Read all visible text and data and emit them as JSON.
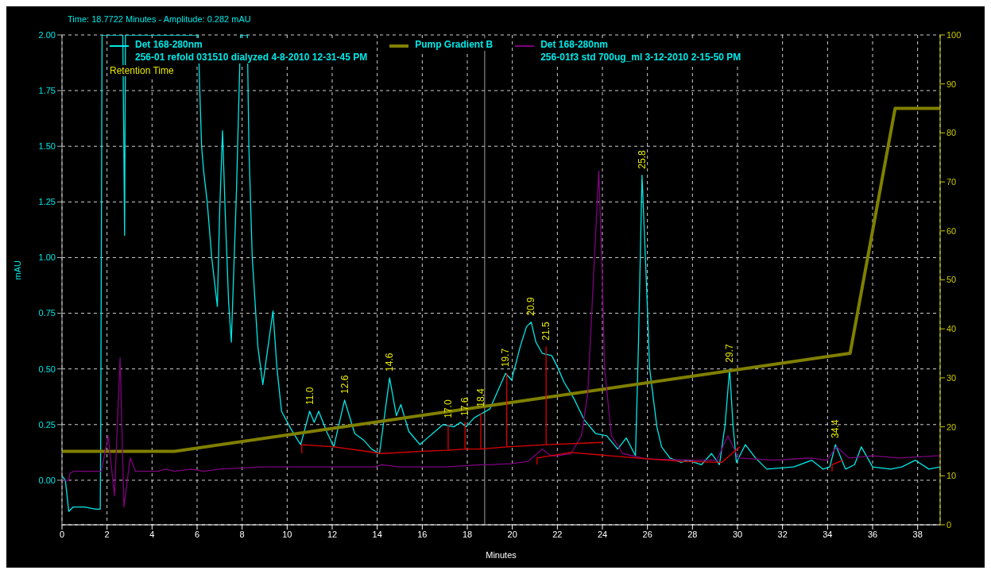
{
  "chart_data": {
    "type": "line",
    "xlabel": "Minutes",
    "ylabel": "mAU",
    "xlim": [
      0,
      39
    ],
    "xticks": [
      0,
      2,
      4,
      6,
      8,
      10,
      12,
      14,
      16,
      18,
      20,
      22,
      24,
      26,
      28,
      30,
      32,
      34,
      36,
      38
    ],
    "ylim": [
      -0.2,
      2.0
    ],
    "yticks": [
      {
        "value": 0,
        "label": "0.00"
      },
      {
        "value": 0.25,
        "label": "0.25"
      },
      {
        "value": 0.5,
        "label": "0.50"
      },
      {
        "value": 0.75,
        "label": "0.75"
      },
      {
        "value": 1,
        "label": "1.00"
      },
      {
        "value": 1.25,
        "label": "1.25"
      },
      {
        "value": 1.5,
        "label": "1.50"
      },
      {
        "value": 1.75,
        "label": "1.75"
      },
      {
        "value": 2,
        "label": "2.00"
      }
    ],
    "y2lim": [
      0,
      100
    ],
    "y2ticks": [
      0,
      10,
      20,
      30,
      40,
      50,
      60,
      70,
      80,
      90,
      100
    ],
    "grid": true,
    "legend": "top",
    "marker": "none",
    "series": [
      {
        "name": "Det 168-280nm\n256-01 refold 031510 dialyzed 4-8-2010 12-31-45 PM",
        "color": "#00e8e8",
        "x": [
          0,
          0.15,
          0.3,
          0.5,
          1.0,
          1.5,
          1.7,
          1.72,
          1.78,
          2.7,
          2.74,
          2.78,
          2.82,
          6.05,
          6.12,
          6.2,
          6.3,
          6.45,
          6.65,
          6.9,
          7.0,
          7.13,
          7.25,
          7.4,
          7.52,
          7.75,
          7.93,
          8.23,
          8.3,
          8.45,
          8.7,
          8.92,
          9.15,
          9.37,
          9.55,
          9.75,
          10.17,
          10.6,
          11.0,
          11.2,
          11.4,
          11.75,
          12.07,
          12.55,
          13.0,
          13.4,
          13.75,
          14.1,
          14.55,
          14.85,
          15.05,
          15.4,
          15.9,
          16.23,
          16.58,
          16.92,
          17.4,
          17.7,
          17.95,
          18.3,
          18.65,
          19.0,
          19.7,
          19.97,
          20.35,
          20.63,
          20.84,
          21.05,
          21.33,
          21.75,
          22.0,
          22.3,
          22.72,
          23.2,
          23.7,
          24.19,
          24.68,
          25.06,
          25.47,
          25.6,
          25.76,
          25.95,
          26.1,
          26.42,
          26.63,
          27.0,
          27.5,
          27.8,
          28.4,
          28.85,
          29.2,
          29.45,
          29.65,
          29.8,
          29.95,
          30.35,
          30.8,
          31.3,
          32.5,
          33.3,
          33.8,
          34.1,
          34.35,
          34.8,
          35.2,
          35.5,
          36.0,
          36.8,
          37.3,
          37.9,
          38.5,
          39
        ],
        "values": [
          0.02,
          0,
          -0.14,
          -0.12,
          -0.12,
          -0.13,
          -0.13,
          0.2,
          2.0,
          2.0,
          1.58,
          1.1,
          2.0,
          2.0,
          1.75,
          1.5,
          1.38,
          1.25,
          1.0,
          0.78,
          1.2,
          1.57,
          1.2,
          0.8,
          0.62,
          1.3,
          2.0,
          2.0,
          1.5,
          1.0,
          0.6,
          0.43,
          0.6,
          0.76,
          0.5,
          0.31,
          0.23,
          0.16,
          0.31,
          0.26,
          0.31,
          0.22,
          0.15,
          0.36,
          0.21,
          0.18,
          0.14,
          0.12,
          0.46,
          0.29,
          0.34,
          0.22,
          0.16,
          0.19,
          0.22,
          0.25,
          0.24,
          0.26,
          0.24,
          0.28,
          0.3,
          0.32,
          0.48,
          0.45,
          0.6,
          0.69,
          0.71,
          0.62,
          0.57,
          0.56,
          0.51,
          0.44,
          0.37,
          0.27,
          0.21,
          0.2,
          0.14,
          0.19,
          0.11,
          0.6,
          1.37,
          0.9,
          0.5,
          0.24,
          0.15,
          0.1,
          0.08,
          0.09,
          0.07,
          0.12,
          0.07,
          0.25,
          0.5,
          0.25,
          0.08,
          0.16,
          0.1,
          0.05,
          0.06,
          0.09,
          0.05,
          0.06,
          0.16,
          0.05,
          0.07,
          0.15,
          0.06,
          0.05,
          0.06,
          0.09,
          0.05,
          0.06
        ]
      },
      {
        "name": "Pump Gradient B",
        "color": "#808000",
        "axis": "y2",
        "x": [
          0,
          5,
          35,
          37,
          39
        ],
        "values": [
          15,
          15,
          35,
          85,
          85
        ]
      },
      {
        "name": "Det 168-280nm\n256-01f3 std 700ug_ml 3-12-2010 2-15-50 PM",
        "color": "#800080",
        "x": [
          0,
          0.3,
          0.35,
          0.5,
          1.75,
          2.05,
          2.33,
          2.58,
          2.75,
          3.03,
          3.27,
          4.24,
          4.6,
          5.0,
          5.75,
          6.3,
          7.0,
          8.9,
          11.0,
          13.9,
          14.2,
          15.0,
          17.0,
          18.6,
          19.0,
          20.0,
          20.7,
          21.33,
          21.7,
          22.0,
          22.6,
          23.07,
          23.35,
          23.6,
          23.84,
          24.0,
          24.1,
          24.4,
          24.9,
          26.0,
          28.0,
          29.08,
          29.57,
          30.05,
          31.6,
          33.27,
          33.97,
          34.4,
          34.95,
          36.0,
          37.2,
          38.85,
          39
        ],
        "values": [
          0,
          0,
          0.03,
          0.04,
          0.04,
          0.2,
          -0.07,
          0.55,
          -0.12,
          0.1,
          0.04,
          0.04,
          0.05,
          0.04,
          0.05,
          0.04,
          0.05,
          0.06,
          0.06,
          0.06,
          0.07,
          0.06,
          0.06,
          0.07,
          0.07,
          0.075,
          0.085,
          0.14,
          0.11,
          0.11,
          0.12,
          0.2,
          0.39,
          0.9,
          1.39,
          0.9,
          0.5,
          0.2,
          0.12,
          0.095,
          0.09,
          0.09,
          0.2,
          0.1,
          0.09,
          0.1,
          0.09,
          0.15,
          0.1,
          0.11,
          0.1,
          0.11,
          0.11
        ]
      },
      {
        "color": "#e00000",
        "x": [
          10.65,
          10.65,
          12.1,
          14.2,
          16.0,
          17.15,
          17.15,
          17.15,
          17.9,
          17.9,
          17.9,
          18.6,
          18.6,
          18.6,
          19.75,
          19.75,
          19.75,
          21.5,
          21.5,
          21.5,
          24.0,
          null,
          21.1,
          21.1,
          22.6,
          25.5,
          27.5,
          29.3,
          30.1,
          null,
          34.2,
          34.2,
          34.7
        ],
        "values": [
          0.12,
          0.16,
          0.15,
          0.12,
          0.13,
          0.135,
          0.25,
          0.135,
          0.14,
          0.26,
          0.14,
          0.14,
          0.3,
          0.14,
          0.15,
          0.48,
          0.15,
          0.16,
          0.6,
          0.16,
          0.17,
          null,
          0.07,
          0.1,
          0.125,
          0.1,
          0.085,
          0.08,
          0.15,
          null,
          0.04,
          0.07,
          0.09
        ]
      }
    ],
    "ref_lines": [
      {
        "axis": "x",
        "value": 18.7722,
        "color": "#a0a0a0"
      }
    ],
    "annotations": [
      "Time:  18.7722 Minutes - Amplitude:  0.282 mAU",
      "Retention Time",
      {
        "text": "11.0",
        "x": 11.0,
        "y": 0.31
      },
      {
        "text": "12.6",
        "x": 12.55,
        "y": 0.36
      },
      {
        "text": "14.6",
        "x": 14.55,
        "y": 0.46
      },
      {
        "text": "17.0",
        "x": 17.15,
        "y": 0.25
      },
      {
        "text": "17.6",
        "x": 17.9,
        "y": 0.26
      },
      {
        "text": "18.4",
        "x": 18.6,
        "y": 0.3
      },
      {
        "text": "19.7",
        "x": 19.7,
        "y": 0.48
      },
      {
        "text": "20.9",
        "x": 20.84,
        "y": 0.71
      },
      {
        "text": "21.5",
        "x": 21.5,
        "y": 0.6
      },
      {
        "text": "25.8",
        "x": 25.76,
        "y": 1.37
      },
      {
        "text": "29.7",
        "x": 29.65,
        "y": 0.5
      },
      {
        "text": "34.4",
        "x": 34.35,
        "y": 0.16
      }
    ]
  }
}
